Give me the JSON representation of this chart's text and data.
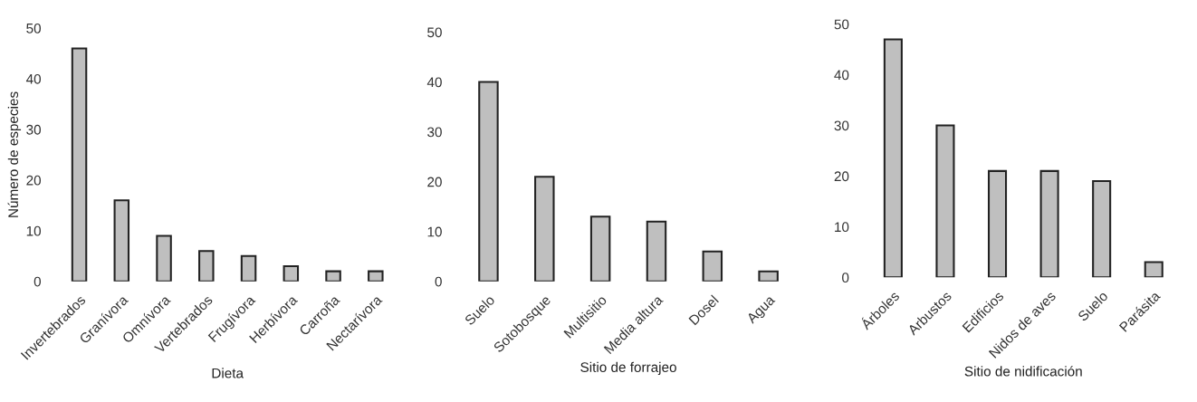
{
  "chart_data": [
    {
      "type": "bar",
      "xlabel": "Dieta",
      "ylabel": "Número de especies",
      "categories": [
        "Invertebrados",
        "Granívora",
        "Omnívora",
        "Vertebrados",
        "Frugívora",
        "Herbívora",
        "Carroña",
        "Nectarívora"
      ],
      "values": [
        46,
        16,
        9,
        6,
        5,
        3,
        2,
        2
      ],
      "color": "#bfbfbf",
      "ylim": [
        0,
        50
      ],
      "yticks": [
        0,
        10,
        20,
        30,
        40,
        50
      ],
      "grid": false
    },
    {
      "type": "bar",
      "xlabel": "Sitio de forrajeo",
      "categories": [
        "Suelo",
        "Sotobosque",
        "Multisitio",
        "Media altura",
        "Dosel",
        "Agua"
      ],
      "values": [
        40,
        21,
        13,
        12,
        6,
        2
      ],
      "color": "#bfbfbf",
      "ylim": [
        0,
        50
      ],
      "yticks": [
        0,
        10,
        20,
        30,
        40,
        50
      ],
      "grid": false
    },
    {
      "type": "bar",
      "xlabel": "Sitio de nidificación",
      "categories": [
        "Árboles",
        "Arbustos",
        "Edificios",
        "Nidos de aves",
        "Suelo",
        "Parásita"
      ],
      "values": [
        47,
        30,
        21,
        21,
        19,
        3
      ],
      "color": "#bfbfbf",
      "ylim": [
        0,
        50
      ],
      "yticks": [
        0,
        10,
        20,
        30,
        40,
        50
      ],
      "grid": false
    }
  ]
}
